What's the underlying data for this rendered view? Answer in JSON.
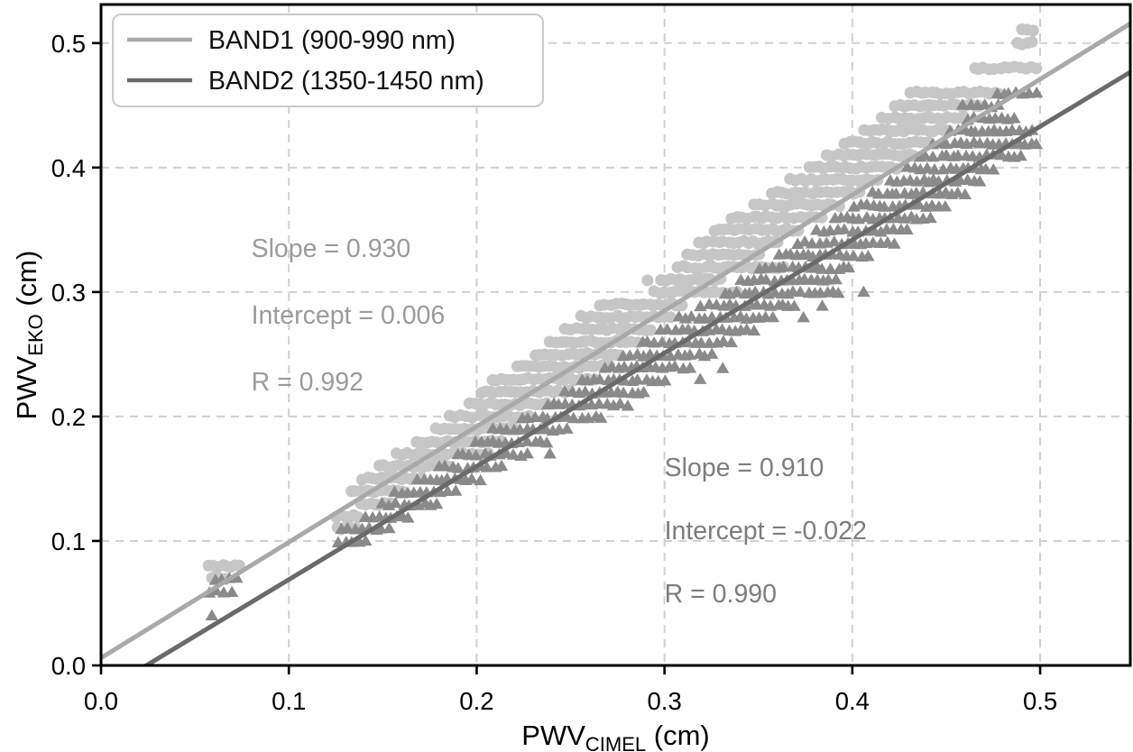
{
  "chart_data": {
    "type": "scatter",
    "title": "",
    "xlabel": {
      "base": "PWV",
      "subscript": "CIMEL",
      "suffix": " (cm)"
    },
    "ylabel": {
      "base": "PWV",
      "subscript": "EKO",
      "suffix": " (cm)"
    },
    "xlim": [
      0,
      0.548
    ],
    "ylim": [
      0,
      0.531
    ],
    "xticks": [
      0.0,
      0.1,
      0.2,
      0.3,
      0.4,
      0.5
    ],
    "xtick_labels": [
      "0.0",
      "0.1",
      "0.2",
      "0.3",
      "0.4",
      "0.5"
    ],
    "yticks": [
      0.0,
      0.1,
      0.2,
      0.3,
      0.4,
      0.5
    ],
    "ytick_labels": [
      "0.0",
      "0.1",
      "0.2",
      "0.3",
      "0.4",
      "0.5"
    ],
    "grid": true,
    "grid_color": "#d0d0d0",
    "frame_color": "#000000",
    "background_color": "#ffffff",
    "legend": {
      "position": "upper left",
      "border_color": "#c9c9c9",
      "text_color": "#111111",
      "items": [
        {
          "label": "BAND1 (900-990 nm)",
          "color": "#a9a9a9"
        },
        {
          "label": "BAND2 (1350-1450 nm)",
          "color": "#6a6a6a"
        }
      ]
    },
    "series": [
      {
        "name": "BAND1 (900-990 nm)",
        "marker": "circle",
        "marker_color": "#c6c6c6",
        "line_color": "#a9a9a9",
        "fit": {
          "slope": 0.93,
          "intercept": 0.006,
          "r": 0.992
        },
        "annotation": {
          "lines": [
            "Slope = 0.930",
            "Intercept = 0.006",
            "R = 0.992"
          ],
          "x": 0.08,
          "y": 0.328,
          "color": "#9b9b9b"
        },
        "runs": [
          [
            0.07,
            0.059,
            0.067
          ],
          [
            0.08,
            0.057,
            0.074
          ],
          [
            0.11,
            0.126,
            0.137
          ],
          [
            0.12,
            0.125,
            0.139
          ],
          [
            0.13,
            0.138,
            0.156
          ],
          [
            0.14,
            0.133,
            0.163
          ],
          [
            0.15,
            0.139,
            0.171
          ],
          [
            0.16,
            0.148,
            0.186
          ],
          [
            0.17,
            0.157,
            0.207
          ],
          [
            0.18,
            0.168,
            0.214
          ],
          [
            0.19,
            0.178,
            0.22
          ],
          [
            0.2,
            0.186,
            0.228
          ],
          [
            0.21,
            0.196,
            0.24
          ],
          [
            0.22,
            0.202,
            0.25
          ],
          [
            0.23,
            0.208,
            0.264
          ],
          [
            0.24,
            0.222,
            0.272
          ],
          [
            0.25,
            0.231,
            0.278
          ],
          [
            0.26,
            0.239,
            0.287
          ],
          [
            0.27,
            0.247,
            0.295
          ],
          [
            0.28,
            0.256,
            0.305
          ],
          [
            0.29,
            0.266,
            0.312
          ],
          [
            0.3,
            0.294,
            0.339
          ],
          [
            0.31,
            0.291,
            0.291
          ],
          [
            0.31,
            0.298,
            0.331
          ],
          [
            0.32,
            0.307,
            0.364
          ],
          [
            0.33,
            0.312,
            0.352
          ],
          [
            0.34,
            0.318,
            0.362
          ],
          [
            0.35,
            0.327,
            0.373
          ],
          [
            0.36,
            0.336,
            0.385
          ],
          [
            0.37,
            0.348,
            0.394
          ],
          [
            0.38,
            0.357,
            0.405
          ],
          [
            0.39,
            0.367,
            0.414
          ],
          [
            0.4,
            0.377,
            0.424
          ],
          [
            0.41,
            0.386,
            0.434
          ],
          [
            0.42,
            0.396,
            0.443
          ],
          [
            0.43,
            0.406,
            0.452
          ],
          [
            0.44,
            0.416,
            0.461
          ],
          [
            0.45,
            0.423,
            0.468
          ],
          [
            0.46,
            0.431,
            0.479
          ],
          [
            0.48,
            0.465,
            0.499
          ],
          [
            0.5,
            0.488,
            0.499
          ],
          [
            0.51,
            0.49,
            0.498
          ]
        ]
      },
      {
        "name": "BAND2 (1350-1450 nm)",
        "marker": "triangle",
        "marker_color": "#8a8a8a",
        "line_color": "#6a6a6a",
        "fit": {
          "slope": 0.91,
          "intercept": -0.022,
          "r": 0.99
        },
        "annotation": {
          "lines": [
            "Slope = 0.910",
            "Intercept = -0.022",
            "R = 0.990"
          ],
          "x": 0.3,
          "y": 0.152,
          "color": "#7d7d7d"
        },
        "runs": [
          [
            0.04,
            0.059,
            0.059
          ],
          [
            0.06,
            0.058,
            0.071
          ],
          [
            0.07,
            0.061,
            0.075
          ],
          [
            0.1,
            0.126,
            0.141
          ],
          [
            0.11,
            0.128,
            0.156
          ],
          [
            0.12,
            0.141,
            0.167
          ],
          [
            0.13,
            0.15,
            0.182
          ],
          [
            0.14,
            0.156,
            0.19
          ],
          [
            0.15,
            0.168,
            0.203
          ],
          [
            0.16,
            0.18,
            0.214
          ],
          [
            0.17,
            0.19,
            0.229
          ],
          [
            0.17,
            0.239,
            0.239
          ],
          [
            0.18,
            0.199,
            0.238
          ],
          [
            0.19,
            0.209,
            0.249
          ],
          [
            0.2,
            0.224,
            0.267
          ],
          [
            0.21,
            0.238,
            0.284
          ],
          [
            0.22,
            0.247,
            0.292
          ],
          [
            0.23,
            0.256,
            0.303
          ],
          [
            0.23,
            0.319,
            0.319
          ],
          [
            0.24,
            0.268,
            0.316
          ],
          [
            0.24,
            0.331,
            0.331
          ],
          [
            0.25,
            0.278,
            0.327
          ],
          [
            0.26,
            0.288,
            0.338
          ],
          [
            0.27,
            0.298,
            0.349
          ],
          [
            0.28,
            0.308,
            0.361
          ],
          [
            0.28,
            0.374,
            0.374
          ],
          [
            0.29,
            0.319,
            0.372
          ],
          [
            0.29,
            0.384,
            0.384
          ],
          [
            0.3,
            0.332,
            0.397
          ],
          [
            0.3,
            0.406,
            0.406
          ],
          [
            0.31,
            0.341,
            0.392
          ],
          [
            0.32,
            0.351,
            0.401
          ],
          [
            0.33,
            0.361,
            0.412
          ],
          [
            0.34,
            0.371,
            0.422
          ],
          [
            0.35,
            0.381,
            0.432
          ],
          [
            0.36,
            0.391,
            0.442
          ],
          [
            0.37,
            0.401,
            0.451
          ],
          [
            0.38,
            0.411,
            0.46
          ],
          [
            0.39,
            0.42,
            0.469
          ],
          [
            0.4,
            0.429,
            0.477
          ],
          [
            0.41,
            0.436,
            0.49
          ],
          [
            0.42,
            0.443,
            0.499
          ],
          [
            0.43,
            0.452,
            0.499
          ],
          [
            0.44,
            0.461,
            0.488
          ],
          [
            0.45,
            0.459,
            0.48
          ],
          [
            0.46,
            0.477,
            0.499
          ]
        ]
      }
    ]
  }
}
